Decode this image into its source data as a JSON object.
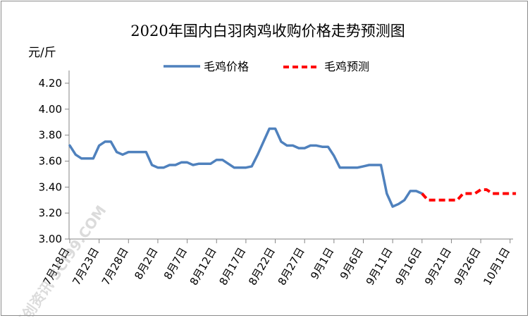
{
  "chart_data": {
    "type": "line",
    "title": "2020年国内白羽肉鸡收购价格走势预测图",
    "ylabel": "元/斤",
    "ylim": [
      3.0,
      4.2
    ],
    "yticks": [
      "3.00",
      "3.20",
      "3.40",
      "3.60",
      "3.80",
      "4.00",
      "4.20"
    ],
    "x_tick_labels": [
      "7月18日",
      "7月23日",
      "7月28日",
      "8月2日",
      "8月7日",
      "8月12日",
      "8月17日",
      "8月22日",
      "8月27日",
      "9月1日",
      "9月6日",
      "9月11日",
      "9月16日",
      "9月21日",
      "9月26日",
      "10月1日"
    ],
    "x_tick_every_days": 5,
    "legend_position": "top",
    "grid": false,
    "series": [
      {
        "name": "毛鸡价格",
        "color": "#4f81bd",
        "style": "solid",
        "start_date": "7月18日",
        "values": [
          3.72,
          3.65,
          3.62,
          3.62,
          3.62,
          3.72,
          3.75,
          3.75,
          3.67,
          3.65,
          3.67,
          3.67,
          3.67,
          3.67,
          3.57,
          3.55,
          3.55,
          3.57,
          3.57,
          3.59,
          3.59,
          3.57,
          3.58,
          3.58,
          3.58,
          3.61,
          3.61,
          3.58,
          3.55,
          3.55,
          3.55,
          3.56,
          3.65,
          3.75,
          3.85,
          3.85,
          3.75,
          3.72,
          3.72,
          3.7,
          3.7,
          3.72,
          3.72,
          3.71,
          3.71,
          3.64,
          3.55,
          3.55,
          3.55,
          3.55,
          3.56,
          3.57,
          3.57,
          3.57,
          3.35,
          3.25,
          3.27,
          3.3,
          3.37,
          3.37,
          3.35
        ]
      },
      {
        "name": "毛鸡预测",
        "color": "#ff0000",
        "style": "dashed",
        "start_date": "9月16日",
        "values": [
          3.35,
          3.3,
          3.3,
          3.3,
          3.3,
          3.3,
          3.3,
          3.35,
          3.35,
          3.35,
          3.38,
          3.38,
          3.35,
          3.35,
          3.35,
          3.35,
          3.35
        ]
      }
    ]
  },
  "watermark": "卓创资讯 SCI99.COM"
}
